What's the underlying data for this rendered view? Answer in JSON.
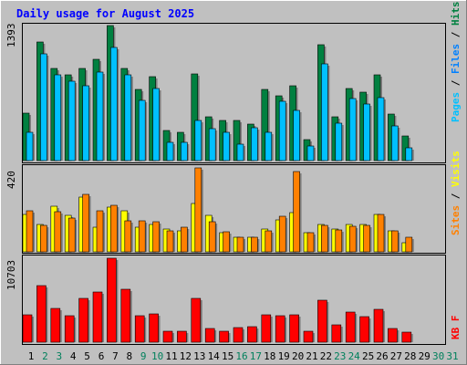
{
  "chart_data": [
    {
      "type": "bar",
      "title": "Daily usage for August 2025",
      "categories": [
        "1",
        "2",
        "3",
        "4",
        "5",
        "6",
        "7",
        "8",
        "9",
        "10",
        "11",
        "12",
        "13",
        "14",
        "15",
        "16",
        "17",
        "18",
        "19",
        "20",
        "21",
        "22",
        "23",
        "24",
        "25",
        "26",
        "27",
        "28",
        "29",
        "30",
        "31"
      ],
      "weekend_days": [
        "2",
        "3",
        "9",
        "10",
        "16",
        "17",
        "23",
        "24",
        "30",
        "31"
      ],
      "ymax_label": "1393",
      "ylim": [
        0,
        1393
      ],
      "series": [
        {
          "name": "Hits",
          "color": "#008040",
          "values": [
            488,
            1224,
            948,
            882,
            948,
            1042,
            1393,
            948,
            734,
            864,
            314,
            288,
            896,
            448,
            416,
            416,
            378,
            734,
            668,
            768,
            216,
            1194,
            448,
            748,
            702,
            882,
            482,
            254,
            0,
            0,
            0
          ]
        },
        {
          "name": "Files",
          "color": "#0080ff",
          "values": [
            0,
            0,
            0,
            0,
            0,
            0,
            0,
            0,
            0,
            0,
            0,
            0,
            0,
            0,
            0,
            0,
            0,
            0,
            0,
            0,
            0,
            0,
            0,
            0,
            0,
            0,
            0,
            0,
            0,
            0,
            0
          ]
        },
        {
          "name": "Pages",
          "color": "#00c0ff",
          "values": [
            294,
            1104,
            886,
            816,
            768,
            914,
            1168,
            882,
            624,
            748,
            192,
            186,
            414,
            334,
            288,
            174,
            338,
            288,
            614,
            522,
            146,
            1002,
            384,
            640,
            588,
            648,
            354,
            134,
            0,
            0,
            0
          ]
        }
      ]
    },
    {
      "type": "bar",
      "ymax_label": "420",
      "ylim": [
        0,
        420
      ],
      "series": [
        {
          "name": "Visits",
          "color": "#ffff00",
          "values": [
            186,
            137,
            227,
            184,
            276,
            123,
            223,
            207,
            125,
            137,
            113,
            104,
            241,
            181,
            98,
            74,
            74,
            113,
            158,
            198,
            98,
            137,
            116,
            137,
            137,
            186,
            104,
            47,
            0,
            0,
            0
          ]
        },
        {
          "name": "Sites",
          "color": "#ff8000",
          "values": [
            206,
            132,
            199,
            167,
            287,
            206,
            234,
            157,
            156,
            150,
            103,
            124,
            420,
            152,
            100,
            72,
            72,
            107,
            176,
            403,
            95,
            132,
            110,
            128,
            133,
            186,
            106,
            71,
            0,
            0,
            0
          ]
        }
      ]
    },
    {
      "type": "bar",
      "ymax_label": "10703",
      "ylim": [
        0,
        10703
      ],
      "series": [
        {
          "name": "KB F",
          "color": "#ff0000",
          "values": [
            3434,
            7211,
            4303,
            3384,
            5536,
            6370,
            10703,
            6788,
            3368,
            3610,
            1376,
            1420,
            5542,
            1712,
            1438,
            1904,
            2004,
            3518,
            3330,
            3522,
            1428,
            5334,
            2264,
            3836,
            3288,
            4157,
            1794,
            1244,
            0,
            0,
            0
          ]
        }
      ]
    }
  ],
  "labels": {
    "right_top": {
      "hits": "Hits",
      "files": "Files",
      "pages": "Pages",
      "sep": " / "
    },
    "right_mid": {
      "visits": "Visits",
      "sites": "Sites",
      "sep": " / "
    },
    "right_bot": {
      "kbf": "KB F"
    }
  },
  "colors": {
    "background": "#c0c0c0",
    "title": "#0000ff",
    "weekday_label": "#000000",
    "weekend_label": "#00805c"
  }
}
